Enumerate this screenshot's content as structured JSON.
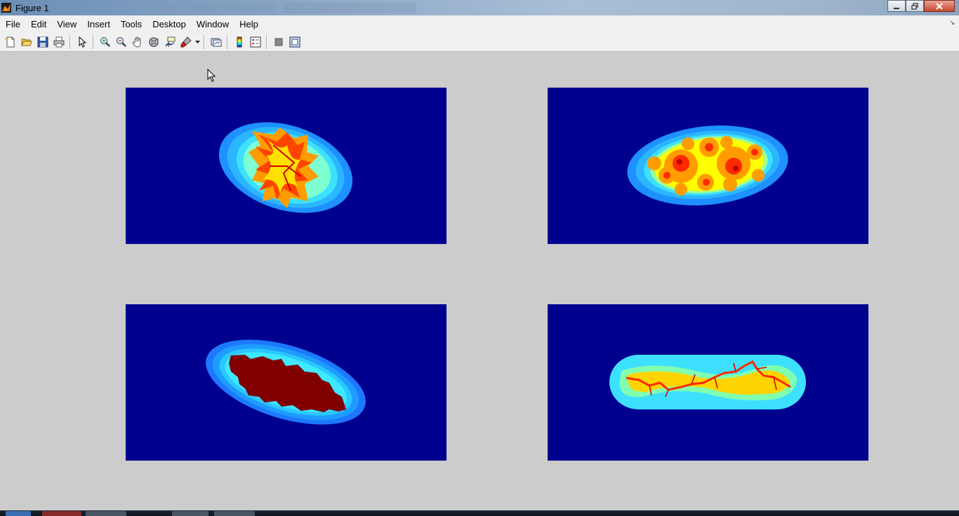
{
  "window": {
    "title": "Figure 1",
    "controls": [
      "minimize-icon",
      "maximize-icon",
      "close-icon"
    ]
  },
  "menubar": {
    "items": [
      "File",
      "Edit",
      "View",
      "Insert",
      "Tools",
      "Desktop",
      "Window",
      "Help"
    ]
  },
  "toolbar": {
    "buttons": [
      "new-figure-icon",
      "open-file-icon",
      "save-icon",
      "print-icon",
      "pointer-icon",
      "zoom-in-icon",
      "zoom-out-icon",
      "pan-icon",
      "rotate-3d-icon",
      "data-cursor-icon",
      "brush-icon",
      "brush-dropdown-icon",
      "link-plot-icon",
      "colorbar-icon",
      "legend-icon",
      "hide-plot-tools-icon",
      "show-plot-tools-icon"
    ]
  },
  "figure": {
    "background_color": "#cccccc",
    "axes": [
      {
        "name": "julia-set-top-left",
        "colormap": "jet",
        "background": "#00008f",
        "set_color": "#ff8c00"
      },
      {
        "name": "julia-set-top-right",
        "colormap": "jet",
        "background": "#00008f",
        "set_color": "#ffff00"
      },
      {
        "name": "julia-set-bottom-left",
        "colormap": "jet",
        "background": "#00008f",
        "set_color": "#800000"
      },
      {
        "name": "julia-set-bottom-right",
        "colormap": "jet",
        "background": "#00008f",
        "set_color": "#ffd400"
      }
    ]
  }
}
